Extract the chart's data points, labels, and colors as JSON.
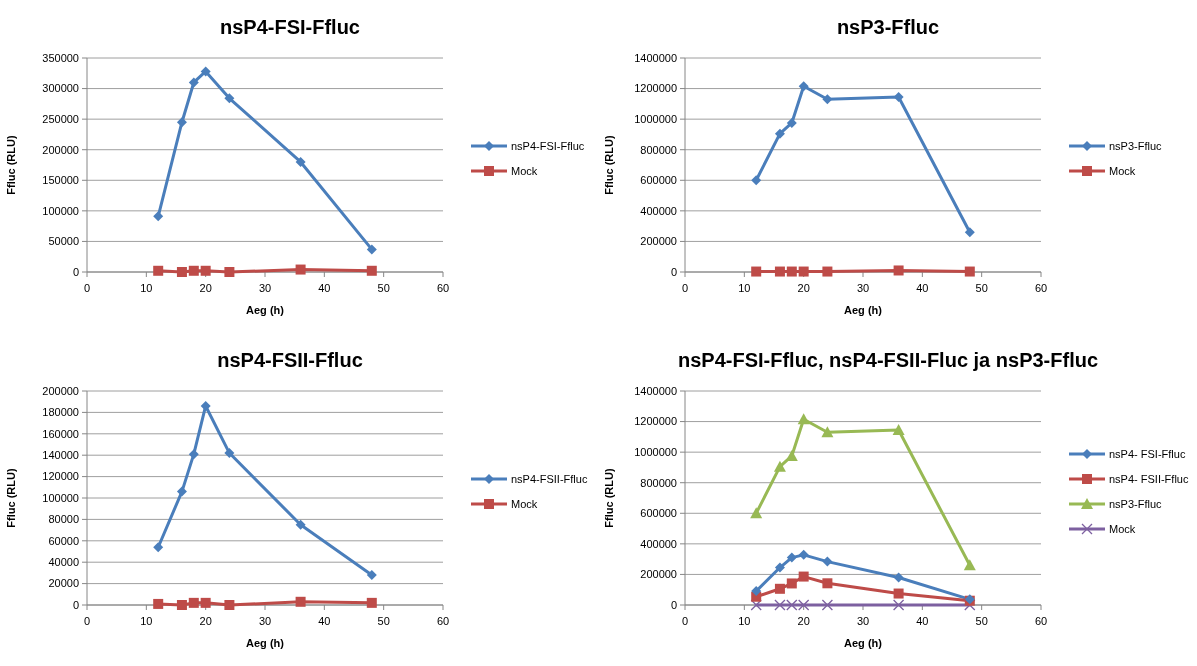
{
  "chart_data": [
    {
      "type": "line",
      "title": "nsP4-FSI-Ffluc",
      "xlabel": "Aeg (h)",
      "ylabel": "Ffluc (RLU)",
      "x": [
        12,
        16,
        18,
        20,
        24,
        36,
        48
      ],
      "xlim": [
        0,
        60
      ],
      "xticks": [
        0,
        10,
        20,
        30,
        40,
        50,
        60
      ],
      "ylim": [
        0,
        350000
      ],
      "yticks": [
        0,
        50000,
        100000,
        150000,
        200000,
        250000,
        300000,
        350000
      ],
      "grid": "y",
      "legend": "right",
      "series": [
        {
          "name": "nsP4-FSI-Ffluc",
          "color": "#4a7ebb",
          "marker": "diamond",
          "values": [
            91000,
            245000,
            310000,
            328000,
            284000,
            180000,
            37000
          ]
        },
        {
          "name": "Mock",
          "color": "#be4b48",
          "marker": "square",
          "values": [
            2000,
            0,
            2000,
            2000,
            0,
            4000,
            2000
          ]
        }
      ]
    },
    {
      "type": "line",
      "title": "nsP3-Ffluc",
      "xlabel": "Aeg (h)",
      "ylabel": "Ffluc (RLU)",
      "x": [
        12,
        16,
        18,
        20,
        24,
        36,
        48
      ],
      "xlim": [
        0,
        60
      ],
      "xticks": [
        0,
        10,
        20,
        30,
        40,
        50,
        60
      ],
      "ylim": [
        0,
        1400000
      ],
      "yticks": [
        0,
        200000,
        400000,
        600000,
        800000,
        1000000,
        1200000,
        1400000
      ],
      "grid": "y",
      "legend": "right",
      "series": [
        {
          "name": "nsP3-Ffluc",
          "color": "#4a7ebb",
          "marker": "diamond",
          "values": [
            600000,
            905000,
            975000,
            1215000,
            1130000,
            1145000,
            260000
          ]
        },
        {
          "name": "Mock",
          "color": "#be4b48",
          "marker": "square",
          "values": [
            3000,
            3000,
            3000,
            3000,
            3000,
            10000,
            3000
          ]
        }
      ]
    },
    {
      "type": "line",
      "title": "nsP4-FSII-Ffluc",
      "xlabel": "Aeg (h)",
      "ylabel": "Ffluc (RLU)",
      "x": [
        12,
        16,
        18,
        20,
        24,
        36,
        48
      ],
      "xlim": [
        0,
        60
      ],
      "xticks": [
        0,
        10,
        20,
        30,
        40,
        50,
        60
      ],
      "ylim": [
        0,
        200000
      ],
      "yticks": [
        0,
        20000,
        40000,
        60000,
        80000,
        100000,
        120000,
        140000,
        160000,
        180000,
        200000
      ],
      "grid": "y",
      "legend": "right",
      "series": [
        {
          "name": "nsP4-FSII-Ffluc",
          "color": "#4a7ebb",
          "marker": "diamond",
          "values": [
            54000,
            106000,
            141000,
            186000,
            142000,
            75000,
            28000
          ]
        },
        {
          "name": "Mock",
          "color": "#be4b48",
          "marker": "square",
          "values": [
            1000,
            0,
            2000,
            2000,
            0,
            3000,
            2000
          ]
        }
      ]
    },
    {
      "type": "line",
      "title": "nsP4-FSI-Ffluc, nsP4-FSII-Fluc ja nsP3-Ffluc",
      "xlabel": "Aeg (h)",
      "ylabel": "Ffluc (RLU)",
      "x": [
        12,
        16,
        18,
        20,
        24,
        36,
        48
      ],
      "xlim": [
        0,
        60
      ],
      "xticks": [
        0,
        10,
        20,
        30,
        40,
        50,
        60
      ],
      "ylim": [
        0,
        1400000
      ],
      "yticks": [
        0,
        200000,
        400000,
        600000,
        800000,
        1000000,
        1200000,
        1400000
      ],
      "grid": "y",
      "legend": "right",
      "series": [
        {
          "name": "nsP4- FSI-Ffluc",
          "color": "#4a7ebb",
          "marker": "diamond",
          "values": [
            91000,
            245000,
            310000,
            328000,
            284000,
            180000,
            37000
          ]
        },
        {
          "name": "nsP4- FSII-Ffluc",
          "color": "#be4b48",
          "marker": "square",
          "values": [
            54000,
            106000,
            141000,
            186000,
            142000,
            75000,
            28000
          ]
        },
        {
          "name": "nsP3-Ffluc",
          "color": "#98b954",
          "marker": "triangle",
          "values": [
            600000,
            905000,
            975000,
            1215000,
            1130000,
            1145000,
            260000
          ]
        },
        {
          "name": "Mock",
          "color": "#7d60a0",
          "marker": "cross",
          "values": [
            0,
            0,
            0,
            0,
            0,
            0,
            0
          ]
        }
      ]
    }
  ]
}
